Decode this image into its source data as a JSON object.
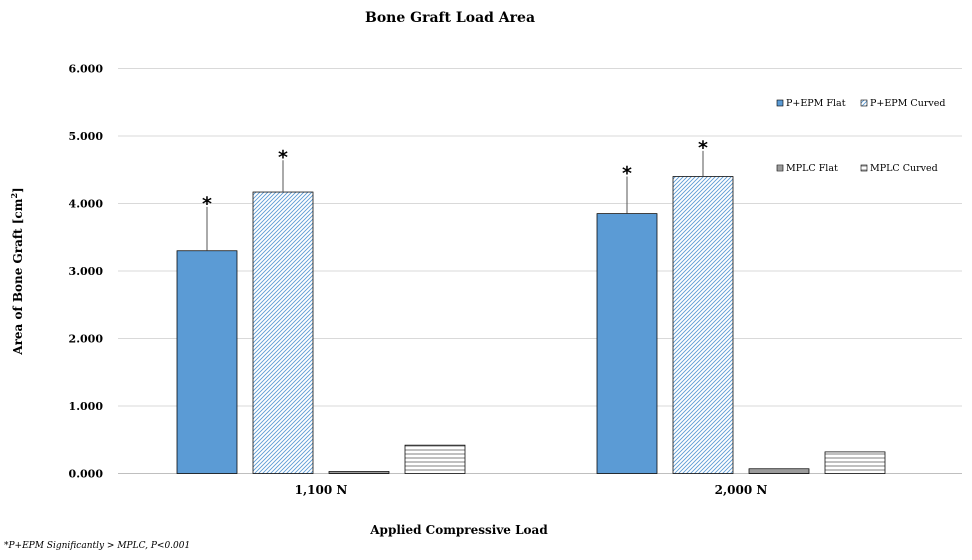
{
  "chart_data": {
    "type": "bar",
    "title": "Bone Graft Load Area",
    "xlabel": "Applied Compressive Load",
    "ylabel": "Area  of Bone Graft  [cm",
    "ylabel_sup": "2",
    "ylabel_end": "]",
    "categories": [
      "1,100 N",
      "2,000 N"
    ],
    "ylim": [
      0,
      6
    ],
    "yticks": [
      "0.000",
      "1.000",
      "2.000",
      "3.000",
      "4.000",
      "5.000",
      "6.000"
    ],
    "grid": true,
    "legend_position": "top-right, 2x2",
    "series": [
      {
        "name": "P+EPM Flat",
        "values": [
          3.3,
          3.85
        ],
        "error": [
          0.65,
          0.55
        ],
        "significant": [
          true,
          true
        ],
        "fill": "solid",
        "color": "#5b9bd5"
      },
      {
        "name": "P+EPM Curved",
        "values": [
          4.17,
          4.4
        ],
        "error": [
          0.47,
          0.38
        ],
        "significant": [
          true,
          true
        ],
        "fill": "diagonal",
        "color": "#5b9bd5"
      },
      {
        "name": "MPLC Flat",
        "values": [
          0.03,
          0.07
        ],
        "error": [
          0,
          0
        ],
        "significant": [
          false,
          false
        ],
        "fill": "dense-lines",
        "color": "#808080"
      },
      {
        "name": "MPLC Curved",
        "values": [
          0.42,
          0.32
        ],
        "error": [
          0,
          0
        ],
        "significant": [
          false,
          false
        ],
        "fill": "horizontal",
        "color": "#808080"
      }
    ],
    "significance_marker": "*",
    "footnote": "*P+EPM Significantly > MPLC, P<0.001"
  }
}
